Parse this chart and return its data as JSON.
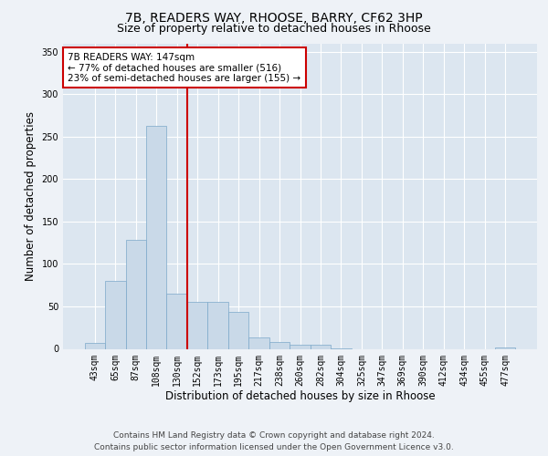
{
  "title_line1": "7B, READERS WAY, RHOOSE, BARRY, CF62 3HP",
  "title_line2": "Size of property relative to detached houses in Rhoose",
  "xlabel": "Distribution of detached houses by size in Rhoose",
  "ylabel": "Number of detached properties",
  "footer_line1": "Contains HM Land Registry data © Crown copyright and database right 2024.",
  "footer_line2": "Contains public sector information licensed under the Open Government Licence v3.0.",
  "bin_labels": [
    "43sqm",
    "65sqm",
    "87sqm",
    "108sqm",
    "130sqm",
    "152sqm",
    "173sqm",
    "195sqm",
    "217sqm",
    "238sqm",
    "260sqm",
    "282sqm",
    "304sqm",
    "325sqm",
    "347sqm",
    "369sqm",
    "390sqm",
    "412sqm",
    "434sqm",
    "455sqm",
    "477sqm"
  ],
  "bar_heights": [
    7,
    80,
    128,
    263,
    65,
    55,
    55,
    44,
    13,
    8,
    5,
    5,
    1,
    0,
    0,
    0,
    0,
    0,
    0,
    0,
    2
  ],
  "bar_color": "#c9d9e8",
  "bar_edgecolor": "#7ba7c9",
  "vline_index": 4.5,
  "vline_color": "#cc0000",
  "annotation_text": "7B READERS WAY: 147sqm\n← 77% of detached houses are smaller (516)\n23% of semi-detached houses are larger (155) →",
  "annotation_box_edgecolor": "#cc0000",
  "annotation_box_facecolor": "#ffffff",
  "ylim": [
    0,
    360
  ],
  "yticks": [
    0,
    50,
    100,
    150,
    200,
    250,
    300,
    350
  ],
  "background_color": "#eef2f7",
  "plot_background_color": "#dce6f0",
  "grid_color": "#ffffff",
  "title_fontsize": 10,
  "subtitle_fontsize": 9,
  "axis_label_fontsize": 8.5,
  "tick_fontsize": 7,
  "footer_fontsize": 6.5
}
